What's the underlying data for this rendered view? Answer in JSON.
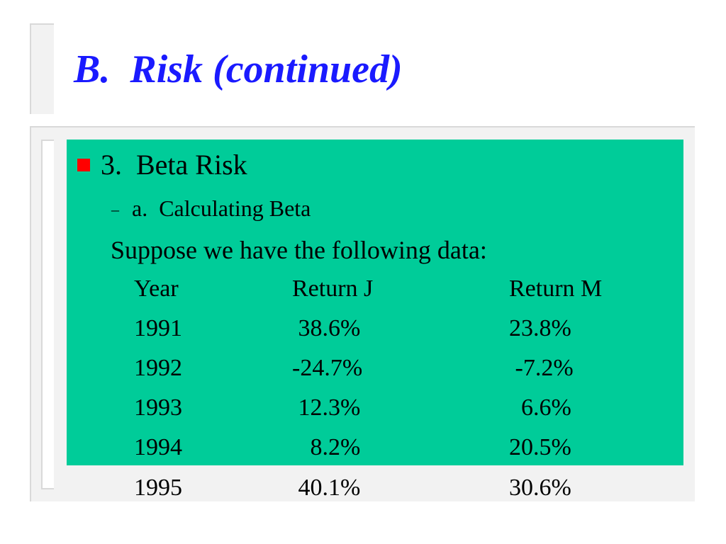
{
  "slide": {
    "title": "B.  Risk (continued)",
    "bullet_text": "3.  Beta Risk",
    "sub_bullet_dash": "–",
    "sub_bullet_text": "a.  Calculating Beta",
    "intro_text": "Suppose we have the following data:",
    "colors": {
      "title": "#1a1aff",
      "panel": "#00cc99",
      "bullet": "#ff0000"
    }
  },
  "table": {
    "headers": [
      "Year",
      "Return J",
      "Return M"
    ],
    "rows": [
      [
        "1991",
        " 38.6%",
        "23.8%"
      ],
      [
        "1992",
        "-24.7%",
        " -7.2%"
      ],
      [
        "1993",
        " 12.3%",
        "  6.6%"
      ],
      [
        "1994",
        "   8.2%",
        "20.5%"
      ],
      [
        "1995",
        " 40.1%",
        "30.6%"
      ]
    ]
  }
}
